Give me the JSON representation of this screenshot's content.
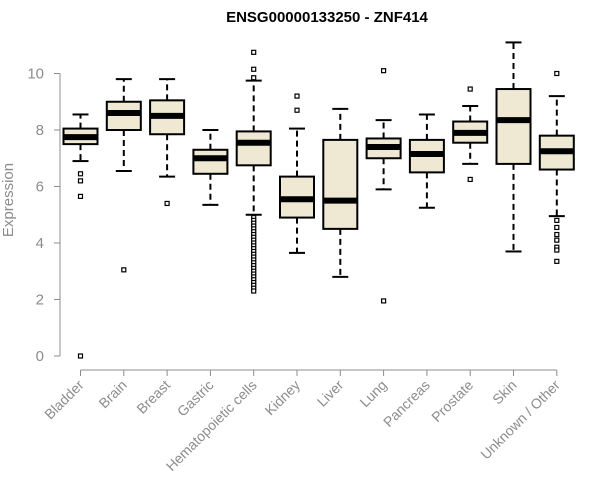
{
  "chart_data": {
    "type": "box",
    "title": "ENSG00000133250 - ZNF414",
    "ylabel": "Expression",
    "xlabel": "",
    "ylim": [
      0,
      11.4
    ],
    "yticks": [
      0,
      2,
      4,
      6,
      8,
      10
    ],
    "grid": false,
    "legend": "none",
    "box_fill": "#efe9d3",
    "box_stroke": "#000000",
    "axis_color": "#8c8c8c",
    "categories": [
      "Bladder",
      "Brain",
      "Breast",
      "Gastric",
      "Hematopoietic cells",
      "Kidney",
      "Liver",
      "Lung",
      "Pancreas",
      "Prostate",
      "Skin",
      "Unknown / Other"
    ],
    "boxes": [
      {
        "category": "Bladder",
        "whisker_low": 6.9,
        "q1": 7.5,
        "median": 7.75,
        "q3": 8.05,
        "whisker_high": 8.55,
        "outliers": [
          6.45,
          6.2,
          5.65,
          0.0
        ]
      },
      {
        "category": "Brain",
        "whisker_low": 6.55,
        "q1": 8.0,
        "median": 8.6,
        "q3": 9.0,
        "whisker_high": 9.8,
        "outliers": [
          3.05
        ]
      },
      {
        "category": "Breast",
        "whisker_low": 6.35,
        "q1": 7.85,
        "median": 8.5,
        "q3": 9.05,
        "whisker_high": 9.8,
        "outliers": [
          5.4
        ]
      },
      {
        "category": "Gastric",
        "whisker_low": 5.35,
        "q1": 6.45,
        "median": 7.0,
        "q3": 7.3,
        "whisker_high": 8.0,
        "outliers": []
      },
      {
        "category": "Hematopoietic cells",
        "whisker_low": 5.0,
        "q1": 6.75,
        "median": 7.55,
        "q3": 7.95,
        "whisker_high": 9.75,
        "outliers": [
          10.75,
          10.15,
          9.85,
          4.9,
          4.8,
          4.7,
          4.6,
          4.5,
          4.4,
          4.3,
          4.2,
          4.1,
          4.0,
          3.9,
          3.8,
          3.7,
          3.6,
          3.5,
          3.4,
          3.3,
          3.2,
          3.1,
          3.0,
          2.9,
          2.8,
          2.7,
          2.6,
          2.5,
          2.4,
          2.3
        ]
      },
      {
        "category": "Kidney",
        "whisker_low": 3.65,
        "q1": 4.9,
        "median": 5.55,
        "q3": 6.35,
        "whisker_high": 8.05,
        "outliers": [
          9.2,
          8.7
        ]
      },
      {
        "category": "Liver",
        "whisker_low": 2.8,
        "q1": 4.5,
        "median": 5.5,
        "q3": 7.65,
        "whisker_high": 8.75,
        "outliers": []
      },
      {
        "category": "Lung",
        "whisker_low": 5.9,
        "q1": 7.0,
        "median": 7.4,
        "q3": 7.7,
        "whisker_high": 8.35,
        "outliers": [
          10.1,
          1.95
        ]
      },
      {
        "category": "Pancreas",
        "whisker_low": 5.25,
        "q1": 6.5,
        "median": 7.15,
        "q3": 7.65,
        "whisker_high": 8.55,
        "outliers": []
      },
      {
        "category": "Prostate",
        "whisker_low": 6.8,
        "q1": 7.55,
        "median": 7.9,
        "q3": 8.3,
        "whisker_high": 8.85,
        "outliers": [
          9.45,
          6.25
        ]
      },
      {
        "category": "Skin",
        "whisker_low": 3.7,
        "q1": 6.8,
        "median": 8.35,
        "q3": 9.45,
        "whisker_high": 11.1,
        "outliers": []
      },
      {
        "category": "Unknown / Other",
        "whisker_low": 4.95,
        "q1": 6.6,
        "median": 7.25,
        "q3": 7.8,
        "whisker_high": 9.2,
        "outliers": [
          10.0,
          4.8,
          4.55,
          4.3,
          4.1,
          3.85,
          3.75,
          3.35
        ]
      }
    ]
  }
}
